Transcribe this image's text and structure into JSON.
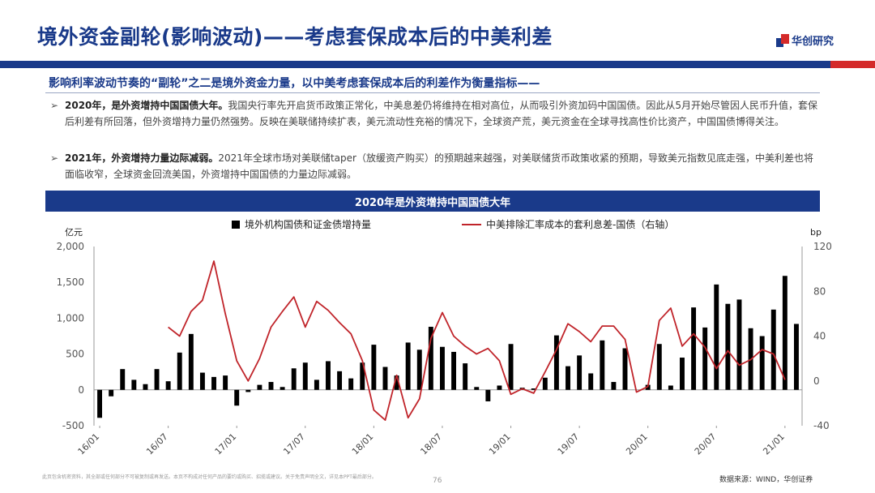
{
  "slide": {
    "title": "境外资金副轮(影响波动)——考虑套保成本后的中美利差",
    "logo_text": "华创研究",
    "subtitle": "影响利率波动节奏的“副轮”之二是境外资金力量，以中美考虑套保成本后的利差作为衡量指标——",
    "bullets": [
      {
        "lead": "2020年，是外资增持中国国债大年。",
        "body": "我国央行率先开启货币政策正常化，中美息差仍将维持在相对高位，从而吸引外资加码中国国债。因此从5月开始尽管因人民币升值，套保后利差有所回落，但外资增持力量仍然强势。反映在美联储持续扩表，美元流动性充裕的情况下，全球资产荒，美元资金在全球寻找高性价比资产，中国国债博得关注。"
      },
      {
        "lead": "2021年，外资增持力量边际减弱。",
        "body": "2021年全球市场对美联储taper（放缓资产购买）的预期越来越强，对美联储货币政策收紧的预期，导致美元指数见底走强，中美利差也将面临收窄，全球资金回流美国，外资增持中国国债的力量边际减弱。"
      }
    ],
    "arrow_glyph": "➢",
    "chart_header": "2020年是外资增持中国国债大年",
    "footnote": "此页包含机密资料，其全部或任何部分不可被复制或再发送。本页不构成对任何产品的要约或购买、招揽或建议。关于免责声明全文，详见本PPT最后部分。",
    "page_number": "76",
    "source": "数据来源：WIND，华创证券"
  },
  "colors": {
    "brand": "#1a3a8a",
    "accent": "#d42a2a",
    "bar": "#000000",
    "line": "#c0242a"
  },
  "chart_data": {
    "type": "bar+line",
    "left_axis_label": "亿元",
    "right_axis_label": "bp",
    "left_ylim": [
      -500,
      2000
    ],
    "left_ticks": [
      -500,
      0,
      500,
      1000,
      1500,
      2000
    ],
    "left_tick_labels": [
      "-500",
      "0",
      "500",
      "1,000",
      "1,500",
      "2,000"
    ],
    "right_ylim": [
      -40,
      120
    ],
    "right_ticks": [
      -40,
      0,
      40,
      80,
      120
    ],
    "right_tick_labels": [
      "-40",
      "0",
      "40",
      "80",
      "120"
    ],
    "x_tick_labels": [
      "16/01",
      "16/07",
      "17/01",
      "17/07",
      "18/01",
      "18/07",
      "19/01",
      "19/07",
      "20/01",
      "20/07",
      "21/01"
    ],
    "x_tick_month_index": [
      0,
      6,
      12,
      18,
      24,
      30,
      36,
      42,
      48,
      54,
      60
    ],
    "grid": false,
    "legend_position": "top",
    "series": [
      {
        "name": "境外机构国债和证金债增持量",
        "kind": "bar",
        "axis": "left",
        "start_month": "16/01",
        "values": [
          -390,
          -90,
          290,
          140,
          80,
          290,
          120,
          520,
          780,
          240,
          180,
          200,
          -220,
          -30,
          70,
          110,
          40,
          300,
          380,
          140,
          400,
          260,
          160,
          380,
          630,
          320,
          200,
          660,
          560,
          880,
          600,
          530,
          370,
          40,
          -160,
          60,
          640,
          30,
          20,
          170,
          760,
          330,
          480,
          230,
          690,
          110,
          580,
          0,
          70,
          640,
          60,
          450,
          1150,
          870,
          1470,
          1200,
          1260,
          860,
          750,
          1120,
          1590,
          920
        ]
      },
      {
        "name": "中美排除汇率成本的套利息差-国债（右轴）",
        "kind": "line",
        "axis": "right",
        "start_month": "16/07",
        "values": [
          48,
          40,
          62,
          72,
          107,
          60,
          18,
          0,
          20,
          48,
          62,
          75,
          48,
          71,
          63,
          52,
          42,
          18,
          -26,
          -35,
          5,
          -33,
          -16,
          38,
          61,
          40,
          31,
          24,
          29,
          18,
          -12,
          -7,
          -11,
          8,
          28,
          51,
          44,
          35,
          49,
          49,
          37,
          -10,
          -5,
          54,
          65,
          31,
          42,
          30,
          11,
          27,
          14,
          19,
          28,
          24,
          1
        ]
      }
    ]
  }
}
